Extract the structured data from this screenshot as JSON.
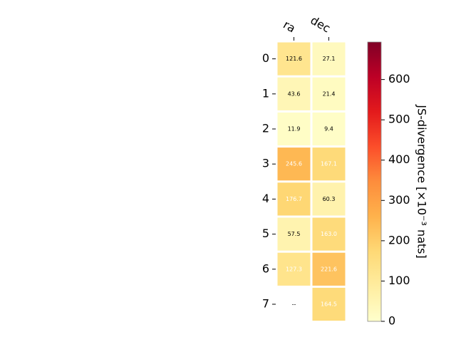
{
  "chart_data": {
    "type": "heatmap",
    "columns": [
      "ra",
      "dec"
    ],
    "rows": [
      "0",
      "1",
      "2",
      "3",
      "4",
      "5",
      "6",
      "7"
    ],
    "values": [
      [
        121.6,
        27.1
      ],
      [
        43.6,
        21.4
      ],
      [
        11.9,
        9.4
      ],
      [
        245.6,
        167.1
      ],
      [
        176.7,
        60.3
      ],
      [
        57.5,
        163.0
      ],
      [
        127.3,
        221.6
      ],
      [
        null,
        164.5
      ]
    ],
    "cell_labels": [
      [
        "121.6",
        "27.1"
      ],
      [
        "43.6",
        "21.4"
      ],
      [
        "11.9",
        "9.4"
      ],
      [
        "245.6",
        "167.1"
      ],
      [
        "176.7",
        "60.3"
      ],
      [
        "57.5",
        "163.0"
      ],
      [
        "127.3",
        "221.6"
      ],
      [
        "--",
        "164.5"
      ]
    ],
    "colorbar": {
      "label": "JS-divergence [×10⁻³ nats]",
      "range": [
        0,
        693
      ],
      "ticks": [
        "0",
        "100",
        "200",
        "300",
        "400",
        "500",
        "600"
      ],
      "tick_values": [
        0,
        100,
        200,
        300,
        400,
        500,
        600
      ],
      "colormap": "YlOrRd"
    }
  }
}
